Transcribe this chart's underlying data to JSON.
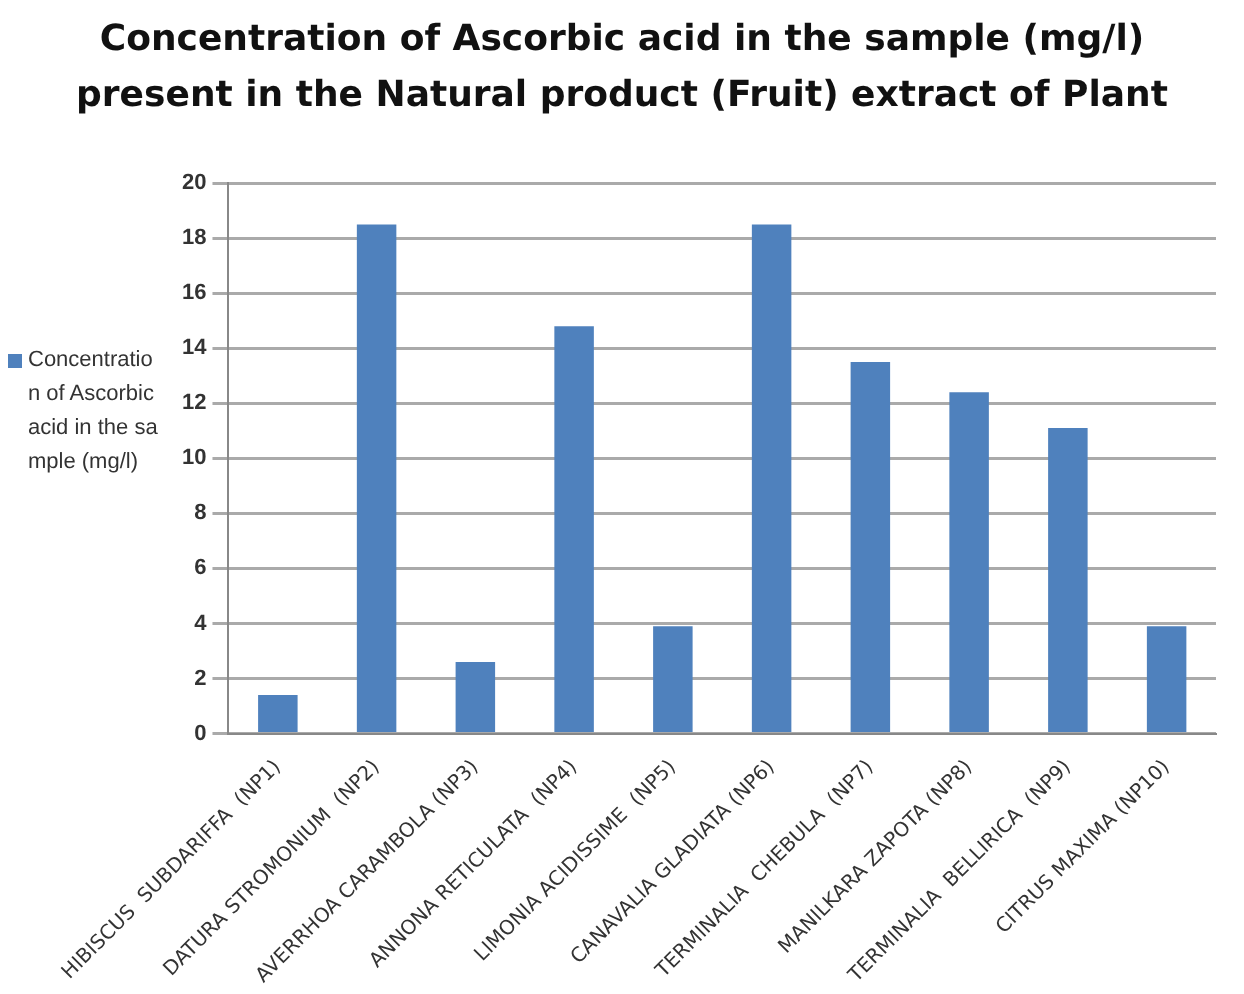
{
  "chart_data": {
    "type": "bar",
    "title": "Concentration of Ascorbic acid in the sample (mg/l) present in the Natural product (Fruit) extract of Plant",
    "categories": [
      "HIBISCUS  SUBDARIFFA  (NP1)",
      "DATURA STROMONIUM  (NP2)",
      "AVERRHOA CARAMBOLA (NP3)",
      "ANNONA RETICULATA  (NP4)",
      "LIMONIA ACIDISSIME  (NP5)",
      "CANAVALIA GLADIATA (NP6)",
      "TERMINALIA  CHEBULA  (NP7)",
      "MANILKARA ZAPOTA (NP8)",
      "TERMINALIA  BELLIRICA  (NP9)",
      "CITRUS MAXIMA (NP10)"
    ],
    "series": [
      {
        "name": "Concentration of Ascorbic acid in the sample (mg/l)",
        "color": "#4f81bd",
        "values": [
          1.4,
          18.5,
          2.6,
          14.8,
          3.9,
          18.5,
          13.5,
          12.4,
          11.1,
          3.9
        ]
      }
    ],
    "ylim": [
      0,
      20
    ],
    "yticks": [
      0,
      2,
      4,
      6,
      8,
      10,
      12,
      14,
      16,
      18,
      20
    ],
    "grid": "y",
    "legend": "left"
  }
}
